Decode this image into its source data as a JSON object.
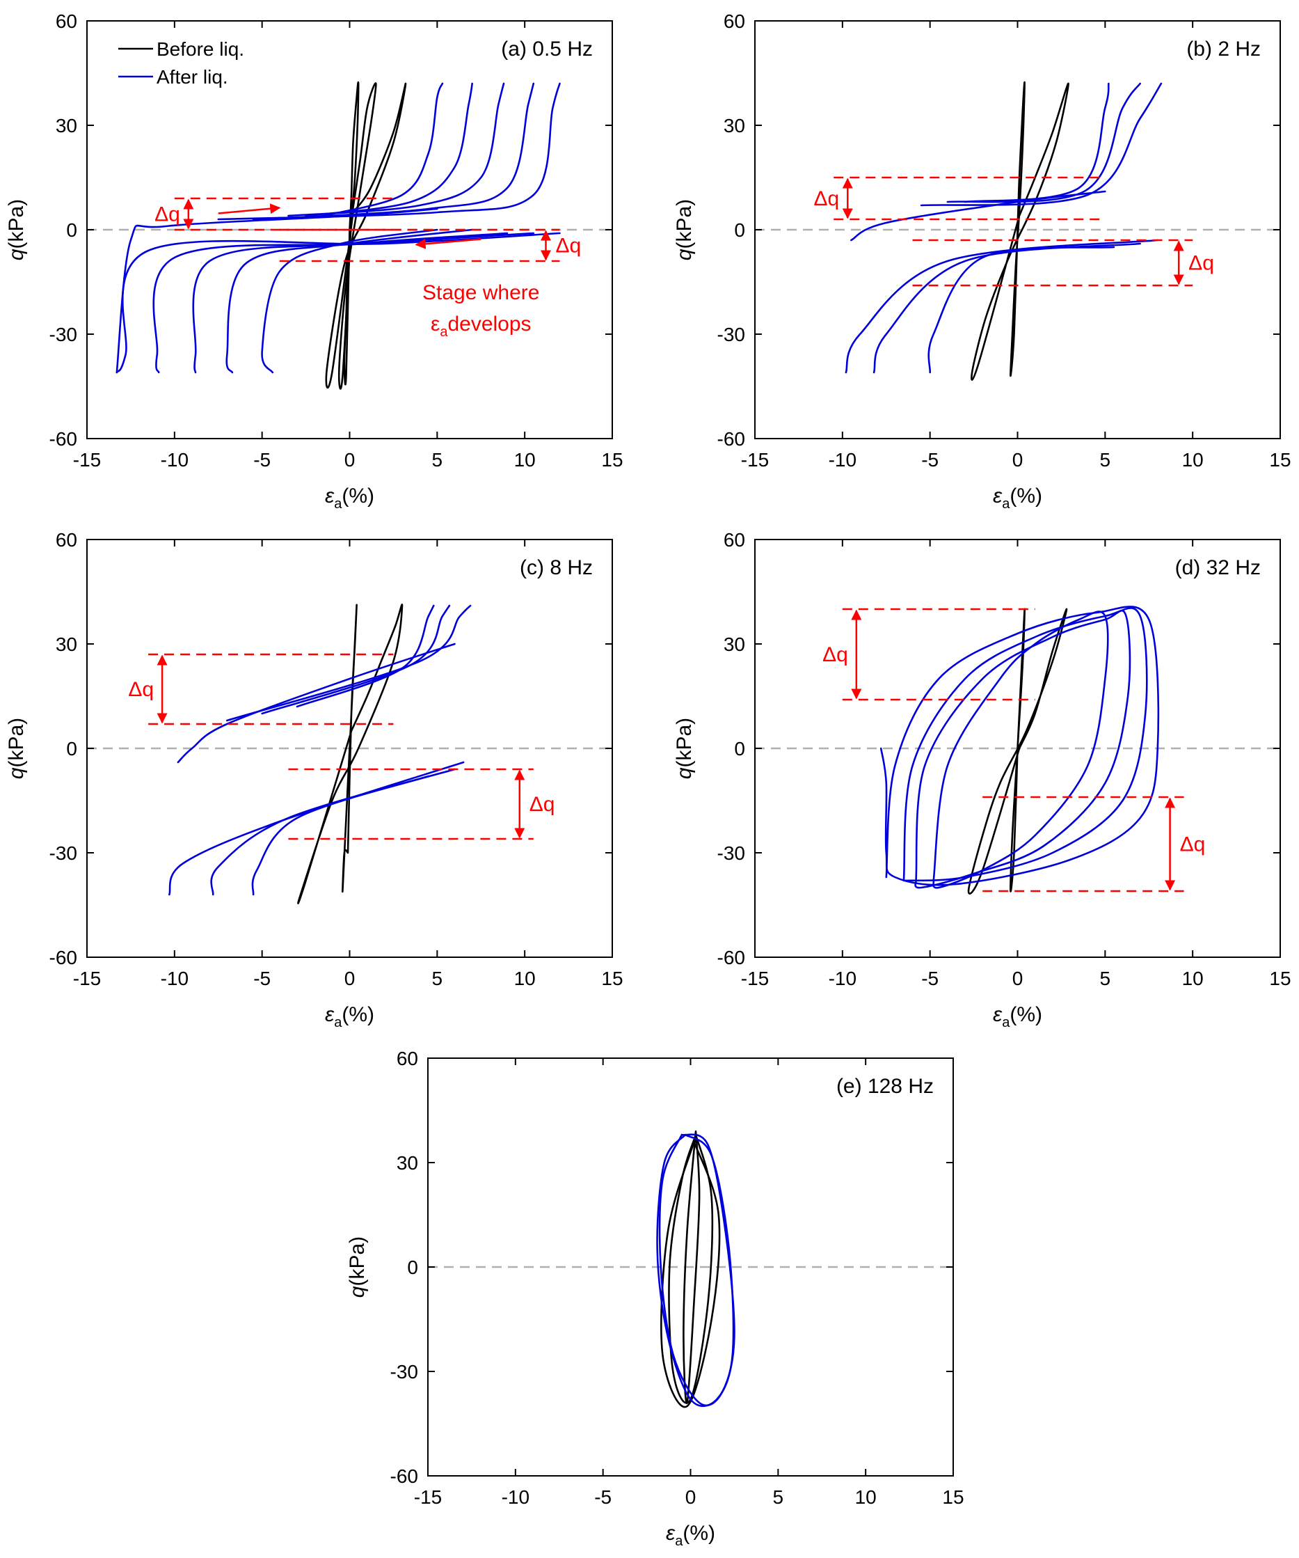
{
  "figure": {
    "colors": {
      "before": "#000000",
      "after": "#0000dd",
      "annotation": "#ff0000",
      "zero_line": "#b0b0b0"
    }
  },
  "chart_data": [
    {
      "id": "a",
      "type": "line",
      "title": "(a) 0.5 Hz",
      "xlabel_main": "ε",
      "xlabel_sub": "a",
      "xlabel_unit": "(%)",
      "ylabel_main": "q",
      "ylabel_unit": "(kPa)",
      "xlim": [
        -15,
        15
      ],
      "ylim": [
        -60,
        60
      ],
      "xticks": [
        -15,
        -10,
        -5,
        0,
        5,
        10,
        15
      ],
      "yticks": [
        -60,
        -30,
        0,
        30,
        60
      ],
      "legend": {
        "position": "top-left",
        "entries": [
          {
            "label": "Before liq.",
            "color": "#000000"
          },
          {
            "label": "After liq.",
            "color": "#0000dd"
          }
        ]
      },
      "series": [
        {
          "phase": "before",
          "x": [
            0,
            0.1,
            0.2,
            0.4,
            0.5,
            0.45,
            0.3,
            0.1,
            -0.1,
            -0.2,
            -0.3,
            -0.2,
            0
          ],
          "y": [
            0,
            10,
            25,
            38,
            42,
            30,
            15,
            3,
            -10,
            -25,
            -38,
            -42,
            0
          ]
        },
        {
          "phase": "before",
          "x": [
            0.1,
            0.6,
            1.0,
            1.5,
            1.2,
            0.5,
            -0.2,
            -0.6,
            -0.4,
            0.1
          ],
          "y": [
            3,
            20,
            35,
            42,
            30,
            8,
            -15,
            -40,
            -42,
            3
          ]
        },
        {
          "phase": "before",
          "x": [
            0.2,
            1.2,
            2.5,
            3.2,
            2.5,
            1.0,
            -0.3,
            -1.3,
            -1.0,
            0.2
          ],
          "y": [
            5,
            12,
            28,
            42,
            25,
            5,
            -10,
            -40,
            -41,
            5
          ]
        },
        {
          "phase": "after",
          "x": [
            -1.5,
            3.0,
            4.5,
            5.0,
            5.3
          ],
          "y": [
            4,
            10,
            22,
            38,
            42
          ]
        },
        {
          "phase": "after",
          "x": [
            -2.5,
            3.5,
            6.0,
            6.8,
            7.0
          ],
          "y": [
            4,
            8,
            18,
            36,
            42
          ]
        },
        {
          "phase": "after",
          "x": [
            -3.5,
            4.0,
            7.5,
            8.5,
            8.8
          ],
          "y": [
            4,
            7,
            15,
            36,
            42
          ]
        },
        {
          "phase": "after",
          "x": [
            -5.5,
            4.5,
            9.0,
            10.2,
            10.5
          ],
          "y": [
            3,
            6,
            12,
            36,
            42
          ]
        },
        {
          "phase": "after",
          "x": [
            -7.5,
            5.0,
            10.5,
            11.6,
            12.0
          ],
          "y": [
            3,
            5,
            10,
            35,
            42
          ]
        },
        {
          "phase": "after",
          "x": [
            5.0,
            -0.5,
            -4.0,
            -5.0,
            -4.4
          ],
          "y": [
            0,
            -4,
            -12,
            -35,
            -41
          ]
        },
        {
          "phase": "after",
          "x": [
            7.0,
            0.0,
            -6.0,
            -7.0,
            -6.7
          ],
          "y": [
            0,
            -4,
            -10,
            -36,
            -41
          ]
        },
        {
          "phase": "after",
          "x": [
            9.0,
            0.5,
            -8.0,
            -8.8,
            -8.8
          ],
          "y": [
            -1,
            -4,
            -9,
            -36,
            -41
          ]
        },
        {
          "phase": "after",
          "x": [
            10.5,
            1.0,
            -10.0,
            -11.0,
            -10.9
          ],
          "y": [
            -1,
            -4,
            -8,
            -36,
            -41
          ]
        },
        {
          "phase": "after",
          "x": [
            12.0,
            2.0,
            -11.5,
            -12.8,
            -13.3
          ],
          "y": [
            -1,
            -4,
            -6,
            -36,
            -41
          ]
        },
        {
          "phase": "after",
          "x": [
            -13.3,
            -12.5,
            -10.5,
            0,
            5.0
          ],
          "y": [
            -41,
            -3,
            1,
            4,
            6
          ]
        }
      ],
      "annotations": {
        "dq1": {
          "label": "Δq",
          "x_range": [
            -10.0,
            2.5
          ],
          "y_top": 9,
          "y_bottom": 0
        },
        "dq2": {
          "label": "Δq",
          "x_range": [
            -4.0,
            12.0
          ],
          "y_top": 0,
          "y_bottom": -9
        },
        "arrow_right": {
          "x_from": -7.5,
          "x_to": -4.0,
          "y": 5.5
        },
        "arrow_left": {
          "x_from": 7.5,
          "x_to": 3.8,
          "y": -3.5
        },
        "stage_text_1": "Stage where",
        "stage_text_2_main": "ε",
        "stage_text_2_sub": "a",
        "stage_text_2_rest": "develops"
      }
    },
    {
      "id": "b",
      "type": "line",
      "title": "(b) 2 Hz",
      "xlabel_main": "ε",
      "xlabel_sub": "a",
      "xlabel_unit": "(%)",
      "ylabel_main": "q",
      "ylabel_unit": "(kPa)",
      "xlim": [
        -15,
        15
      ],
      "ylim": [
        -60,
        60
      ],
      "xticks": [
        -15,
        -10,
        -5,
        0,
        5,
        10,
        15
      ],
      "yticks": [
        -60,
        -30,
        0,
        30,
        60
      ],
      "series": [
        {
          "phase": "before",
          "x": [
            0,
            0.1,
            0.3,
            0.4,
            0.3,
            0.1,
            -0.1,
            -0.3,
            -0.4,
            -0.2,
            0
          ],
          "y": [
            0,
            15,
            35,
            42,
            25,
            5,
            -10,
            -30,
            -42,
            -30,
            0
          ]
        },
        {
          "phase": "before",
          "x": [
            0.1,
            1.0,
            2.0,
            2.9,
            2.2,
            1.0,
            -0.5,
            -1.8,
            -2.6,
            -2.2,
            0.1
          ],
          "y": [
            4,
            15,
            28,
            42,
            25,
            8,
            -8,
            -25,
            -41,
            -38,
            4
          ]
        },
        {
          "phase": "after",
          "x": [
            -3.0,
            3.5,
            5.0,
            5.2
          ],
          "y": [
            8,
            12,
            35,
            42
          ]
        },
        {
          "phase": "after",
          "x": [
            -4.0,
            3.8,
            6.0,
            7.0
          ],
          "y": [
            8,
            11,
            35,
            42
          ]
        },
        {
          "phase": "after",
          "x": [
            -5.5,
            4.0,
            7.0,
            8.2
          ],
          "y": [
            7,
            10,
            32,
            42
          ]
        },
        {
          "phase": "after",
          "x": [
            5.5,
            -2.0,
            -4.8,
            -5.0
          ],
          "y": [
            -5,
            -8,
            -30,
            -41
          ]
        },
        {
          "phase": "after",
          "x": [
            7.0,
            -3.0,
            -7.5,
            -8.2
          ],
          "y": [
            -4,
            -9,
            -30,
            -41
          ]
        },
        {
          "phase": "after",
          "x": [
            8.0,
            -4.0,
            -9.0,
            -9.8
          ],
          "y": [
            -3,
            -9,
            -30,
            -41
          ]
        },
        {
          "phase": "after",
          "x": [
            -9.5,
            -7.5,
            0,
            5.0
          ],
          "y": [
            -3,
            2,
            8,
            11
          ]
        }
      ],
      "annotations": {
        "dq1": {
          "label": "Δq",
          "x_range": [
            -10.5,
            5.0
          ],
          "y_top": 15,
          "y_bottom": 3
        },
        "dq2": {
          "label": "Δq",
          "x_range": [
            -6.0,
            10.0
          ],
          "y_top": -3,
          "y_bottom": -16
        }
      }
    },
    {
      "id": "c",
      "type": "line",
      "title": "(c) 8 Hz",
      "xlabel_main": "ε",
      "xlabel_sub": "a",
      "xlabel_unit": "(%)",
      "ylabel_main": "q",
      "ylabel_unit": "(kPa)",
      "xlim": [
        -15,
        15
      ],
      "ylim": [
        -60,
        60
      ],
      "xticks": [
        -15,
        -10,
        -5,
        0,
        5,
        10,
        15
      ],
      "yticks": [
        -60,
        -30,
        0,
        30,
        60
      ],
      "series": [
        {
          "phase": "before",
          "x": [
            -0.1,
            0.1,
            0.3,
            0.4,
            0.2,
            0,
            -0.2,
            -0.4,
            -0.3,
            -0.1
          ],
          "y": [
            -30,
            10,
            30,
            41,
            20,
            0,
            -20,
            -41,
            -30,
            -30
          ]
        },
        {
          "phase": "before",
          "x": [
            0.1,
            1.0,
            1.8,
            2.6,
            3.0,
            2.5,
            0.5,
            -1.0,
            -2.8,
            -2.5,
            0.1
          ],
          "y": [
            5,
            15,
            25,
            35,
            41,
            25,
            0,
            -15,
            -42,
            -38,
            5
          ]
        },
        {
          "phase": "after",
          "x": [
            -3.0,
            3.0,
            4.5,
            4.8
          ],
          "y": [
            12,
            23,
            38,
            41
          ]
        },
        {
          "phase": "after",
          "x": [
            -5.0,
            3.5,
            5.3,
            5.7
          ],
          "y": [
            10,
            24,
            38,
            41
          ]
        },
        {
          "phase": "after",
          "x": [
            -7.0,
            4.0,
            6.3,
            6.9
          ],
          "y": [
            8,
            25,
            38,
            41
          ]
        },
        {
          "phase": "after",
          "x": [
            4.5,
            -3.0,
            -5.3,
            -5.5
          ],
          "y": [
            -8,
            -20,
            -35,
            -42
          ]
        },
        {
          "phase": "after",
          "x": [
            6.0,
            -3.5,
            -7.5,
            -7.8
          ],
          "y": [
            -6,
            -20,
            -34,
            -42
          ]
        },
        {
          "phase": "after",
          "x": [
            6.5,
            -4.0,
            -9.5,
            -10.3
          ],
          "y": [
            -4,
            -21,
            -33,
            -42
          ]
        },
        {
          "phase": "after",
          "x": [
            -9.8,
            -9.0,
            -7.0,
            0,
            6.0
          ],
          "y": [
            -4,
            0,
            7,
            20,
            30
          ]
        }
      ],
      "annotations": {
        "dq1": {
          "label": "Δq",
          "x_range": [
            -11.5,
            2.5
          ],
          "y_top": 27,
          "y_bottom": 7
        },
        "dq2": {
          "label": "Δq",
          "x_range": [
            -3.5,
            10.5
          ],
          "y_top": -6,
          "y_bottom": -26
        }
      }
    },
    {
      "id": "d",
      "type": "line",
      "title": "(d) 32 Hz",
      "xlabel_main": "ε",
      "xlabel_sub": "a",
      "xlabel_unit": "(%)",
      "ylabel_main": "q",
      "ylabel_unit": "(kPa)",
      "xlim": [
        -15,
        15
      ],
      "ylim": [
        -60,
        60
      ],
      "xticks": [
        -15,
        -10,
        -5,
        0,
        5,
        10,
        15
      ],
      "yticks": [
        -60,
        -30,
        0,
        30,
        60
      ],
      "series": [
        {
          "phase": "before",
          "x": [
            0,
            0.2,
            0.4,
            0.3,
            0,
            -0.3,
            -0.4,
            -0.2,
            0
          ],
          "y": [
            0,
            20,
            40,
            25,
            0,
            -25,
            -41,
            -30,
            0
          ]
        },
        {
          "phase": "before",
          "x": [
            0.1,
            1.0,
            2.0,
            2.8,
            2.0,
            0.5,
            -1.0,
            -2.0,
            -2.8,
            -2.0,
            0.1
          ],
          "y": [
            0,
            10,
            28,
            40,
            25,
            5,
            -10,
            -25,
            -41,
            -35,
            0
          ]
        },
        {
          "phase": "after",
          "x": [
            -4.8,
            -4.0,
            -1.0,
            1.0,
            3.5,
            5.0,
            5.0,
            4.0,
            1.0,
            -2.0,
            -4.5,
            -4.8
          ],
          "y": [
            -38,
            -5,
            20,
            30,
            37,
            38,
            20,
            -5,
            -25,
            -35,
            -40,
            -38
          ]
        },
        {
          "phase": "after",
          "x": [
            -5.8,
            -5.3,
            -2.0,
            2.0,
            5.0,
            6.2,
            6.3,
            5.0,
            1.5,
            -2.5,
            -5.5,
            -5.8
          ],
          "y": [
            -38,
            -5,
            20,
            32,
            37,
            38,
            15,
            -10,
            -28,
            -36,
            -40,
            -38
          ]
        },
        {
          "phase": "after",
          "x": [
            -6.5,
            -6.0,
            -3.0,
            1.0,
            5.0,
            7.0,
            7.3,
            6.0,
            2.0,
            -3.0,
            -6.5
          ],
          "y": [
            -38,
            -5,
            20,
            32,
            38,
            38,
            10,
            -15,
            -30,
            -37,
            -38
          ]
        },
        {
          "phase": "after",
          "x": [
            -7.5,
            -7.0,
            -4.5,
            0,
            4.5,
            7.5,
            8.0,
            7.0,
            3.0,
            -3.5,
            -7.0,
            -7.5,
            -7.5,
            -7.8
          ],
          "y": [
            -37,
            -5,
            20,
            33,
            39,
            37,
            0,
            -20,
            -32,
            -39,
            -37,
            -30,
            -10,
            0
          ]
        }
      ],
      "annotations": {
        "dq1": {
          "label": "Δq",
          "x_range": [
            -10.0,
            1.0
          ],
          "y_top": 40,
          "y_bottom": 14
        },
        "dq2": {
          "label": "Δq",
          "x_range": [
            -2.0,
            9.5
          ],
          "y_top": -14,
          "y_bottom": -41
        }
      }
    },
    {
      "id": "e",
      "type": "line",
      "title": "(e) 128 Hz",
      "xlabel_main": "ε",
      "xlabel_sub": "a",
      "xlabel_unit": "(%)",
      "ylabel_main": "q",
      "ylabel_unit": "(kPa)",
      "xlim": [
        -15,
        15
      ],
      "ylim": [
        -60,
        60
      ],
      "xticks": [
        -15,
        -10,
        -5,
        0,
        5,
        10,
        15
      ],
      "yticks": [
        -60,
        -30,
        0,
        30,
        60
      ],
      "series": [
        {
          "phase": "before",
          "x": [
            0.3,
            0.5,
            0.2,
            -0.2,
            -0.4,
            -0.2,
            0.3
          ],
          "y": [
            39,
            20,
            -10,
            -39,
            -20,
            10,
            39
          ]
        },
        {
          "phase": "before",
          "x": [
            0.3,
            1.2,
            1.0,
            0,
            -1.0,
            -1.2,
            -0.5,
            0.3
          ],
          "y": [
            38,
            20,
            -10,
            -38,
            -30,
            0,
            25,
            38
          ]
        },
        {
          "phase": "before",
          "x": [
            0.2,
            1.6,
            1.2,
            -0.2,
            -1.6,
            -1.3,
            0.2
          ],
          "y": [
            36,
            15,
            -15,
            -40,
            -25,
            10,
            36
          ]
        },
        {
          "phase": "after",
          "x": [
            -0.5,
            1.0,
            2.0,
            2.5,
            1.8,
            0.5,
            -1.0,
            -1.7,
            -1.6,
            -0.5
          ],
          "y": [
            38,
            35,
            10,
            -20,
            -36,
            -39,
            -25,
            0,
            25,
            38
          ]
        },
        {
          "phase": "after",
          "x": [
            -0.3,
            1.2,
            2.2,
            2.4,
            1.5,
            0,
            -1.3,
            -1.9,
            -1.5,
            -0.3
          ],
          "y": [
            38,
            32,
            5,
            -25,
            -38,
            -38,
            -20,
            5,
            30,
            38
          ]
        }
      ]
    }
  ]
}
